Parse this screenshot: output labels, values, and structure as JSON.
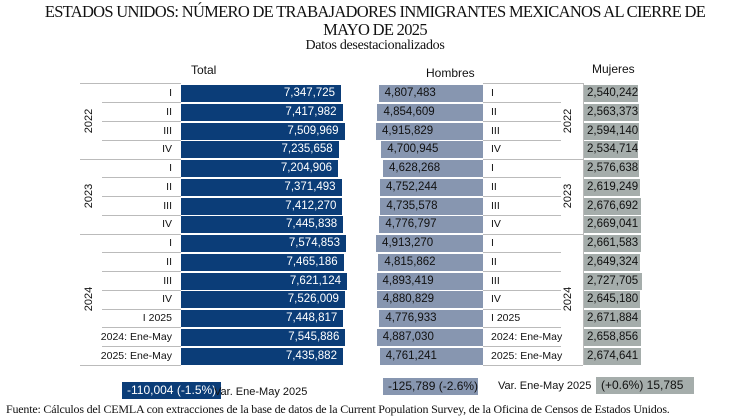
{
  "title_line1": "ESTADOS UNIDOS: NÚMERO DE TRABAJADORES INMIGRANTES MEXICANOS AL CIERRE DE",
  "title_line2": "MAYO DE 2025",
  "subtitle": "Datos desestacionalizados",
  "source": "Fuente: Cálculos del CEMLA con extracciones de la base de datos de la Current Population Survey, de la Oficina de Censos de Estados Unidos.",
  "colors": {
    "total": "#0b3d78",
    "hombres": "#8796b0",
    "mujeres": "#a5adab"
  },
  "chart_data": {
    "type": "bar",
    "orientation": "horizontal",
    "years": [
      {
        "label": "2022",
        "rows": [
          0,
          3
        ]
      },
      {
        "label": "2023",
        "rows": [
          4,
          7
        ]
      },
      {
        "label": "2024",
        "rows": [
          8,
          14
        ]
      }
    ],
    "categories": [
      "I",
      "II",
      "III",
      "IV",
      "I",
      "II",
      "III",
      "IV",
      "I",
      "II",
      "III",
      "IV",
      "I 2025",
      "2024: Ene-May",
      "2025: Ene-May"
    ],
    "series": [
      {
        "name": "Total",
        "values": [
          "7,347,725",
          "7,417,982",
          "7,509,969",
          "7,235,658",
          "7,204,906",
          "7,371,493",
          "7,412,270",
          "7,445,838",
          "7,574,853",
          "7,465,186",
          "7,621,124",
          "7,526,009",
          "7,448,817",
          "7,545,886",
          "7,435,882"
        ]
      },
      {
        "name": "Hombres",
        "values": [
          "4,807,483",
          "4,854,609",
          "4,915,829",
          "4,700,945",
          "4,628,268",
          "4,752,244",
          "4,735,578",
          "4,776,797",
          "4,913,270",
          "4,815,862",
          "4,893,419",
          "4,880,829",
          "4,776,933",
          "4,887,030",
          "4,761,241"
        ]
      },
      {
        "name": "Mujeres",
        "values": [
          "2,540,242",
          "2,563,373",
          "2,594,140",
          "2,534,714",
          "2,576,638",
          "2,619,249",
          "2,676,692",
          "2,669,041",
          "2,661,583",
          "2,649,324",
          "2,727,705",
          "2,645,180",
          "2,671,884",
          "2,658,856",
          "2,674,641"
        ]
      }
    ],
    "variation": {
      "label": "Var. Ene-May 2025",
      "total": "-110,004   (-1.5%)",
      "hombres": "-125,789   (-2.6%)",
      "mujeres": "(+0.6%)  15,785"
    }
  }
}
